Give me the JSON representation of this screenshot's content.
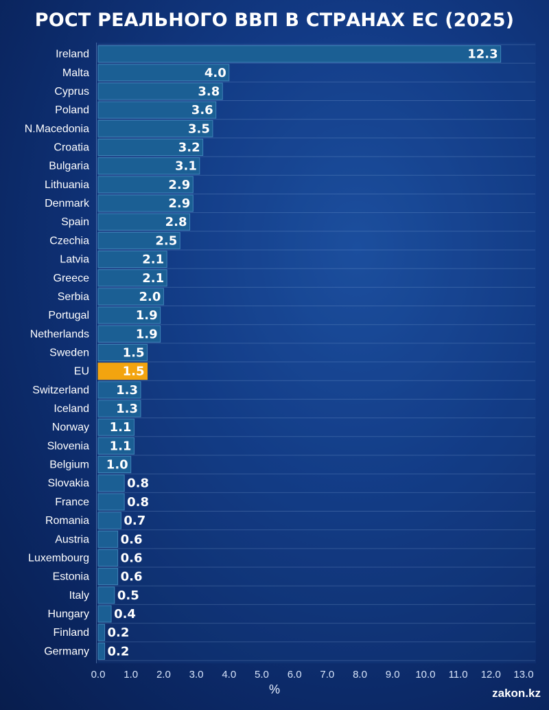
{
  "title": "РОСТ РЕАЛЬНОГО ВВП В СТРАНАХ ЕС (2025)",
  "watermark": "zakon.kz",
  "colors": {
    "bar": "#1b5f94",
    "bar_border": "#3f84b8",
    "highlight": "#f3a40f",
    "text": "#ffffff",
    "tick": "#d7e4fa"
  },
  "chart_data": {
    "type": "bar",
    "orientation": "horizontal",
    "title": "РОСТ РЕАЛЬНОГО ВВП В СТРАНАХ ЕС (2025)",
    "xlabel": "%",
    "ylabel": "",
    "xlim": [
      0,
      13
    ],
    "xticks": [
      "0.0",
      "1.0",
      "2.0",
      "3.0",
      "4.0",
      "5.0",
      "6.0",
      "7.0",
      "8.0",
      "9.0",
      "10.0",
      "11.0",
      "12.0",
      "13.0"
    ],
    "grid": "horizontal",
    "highlight": "EU",
    "categories": [
      "Ireland",
      "Malta",
      "Cyprus",
      "Poland",
      "N.Macedonia",
      "Croatia",
      "Bulgaria",
      "Lithuania",
      "Denmark",
      "Spain",
      "Czechia",
      "Latvia",
      "Greece",
      "Serbia",
      "Portugal",
      "Netherlands",
      "Sweden",
      "EU",
      "Switzerland",
      "Iceland",
      "Norway",
      "Slovenia",
      "Belgium",
      "Slovakia",
      "France",
      "Romania",
      "Austria",
      "Luxembourg",
      "Estonia",
      "Italy",
      "Hungary",
      "Finland",
      "Germany"
    ],
    "values": [
      12.3,
      4.0,
      3.8,
      3.6,
      3.5,
      3.2,
      3.1,
      2.9,
      2.9,
      2.8,
      2.5,
      2.1,
      2.1,
      2.0,
      1.9,
      1.9,
      1.5,
      1.5,
      1.3,
      1.3,
      1.1,
      1.1,
      1.0,
      0.8,
      0.8,
      0.7,
      0.6,
      0.6,
      0.6,
      0.5,
      0.4,
      0.2,
      0.2
    ],
    "labels": [
      "12.3",
      "4.0",
      "3.8",
      "3.6",
      "3.5",
      "3.2",
      "3.1",
      "2.9",
      "2.9",
      "2.8",
      "2.5",
      "2.1",
      "2.1",
      "2.0",
      "1.9",
      "1.9",
      "1.5",
      "1.5",
      "1.3",
      "1.3",
      "1.1",
      "1.1",
      "1.0",
      "0.8",
      "0.8",
      "0.7",
      "0.6",
      "0.6",
      "0.6",
      "0.5",
      "0.4",
      "0.2",
      "0.2"
    ]
  }
}
